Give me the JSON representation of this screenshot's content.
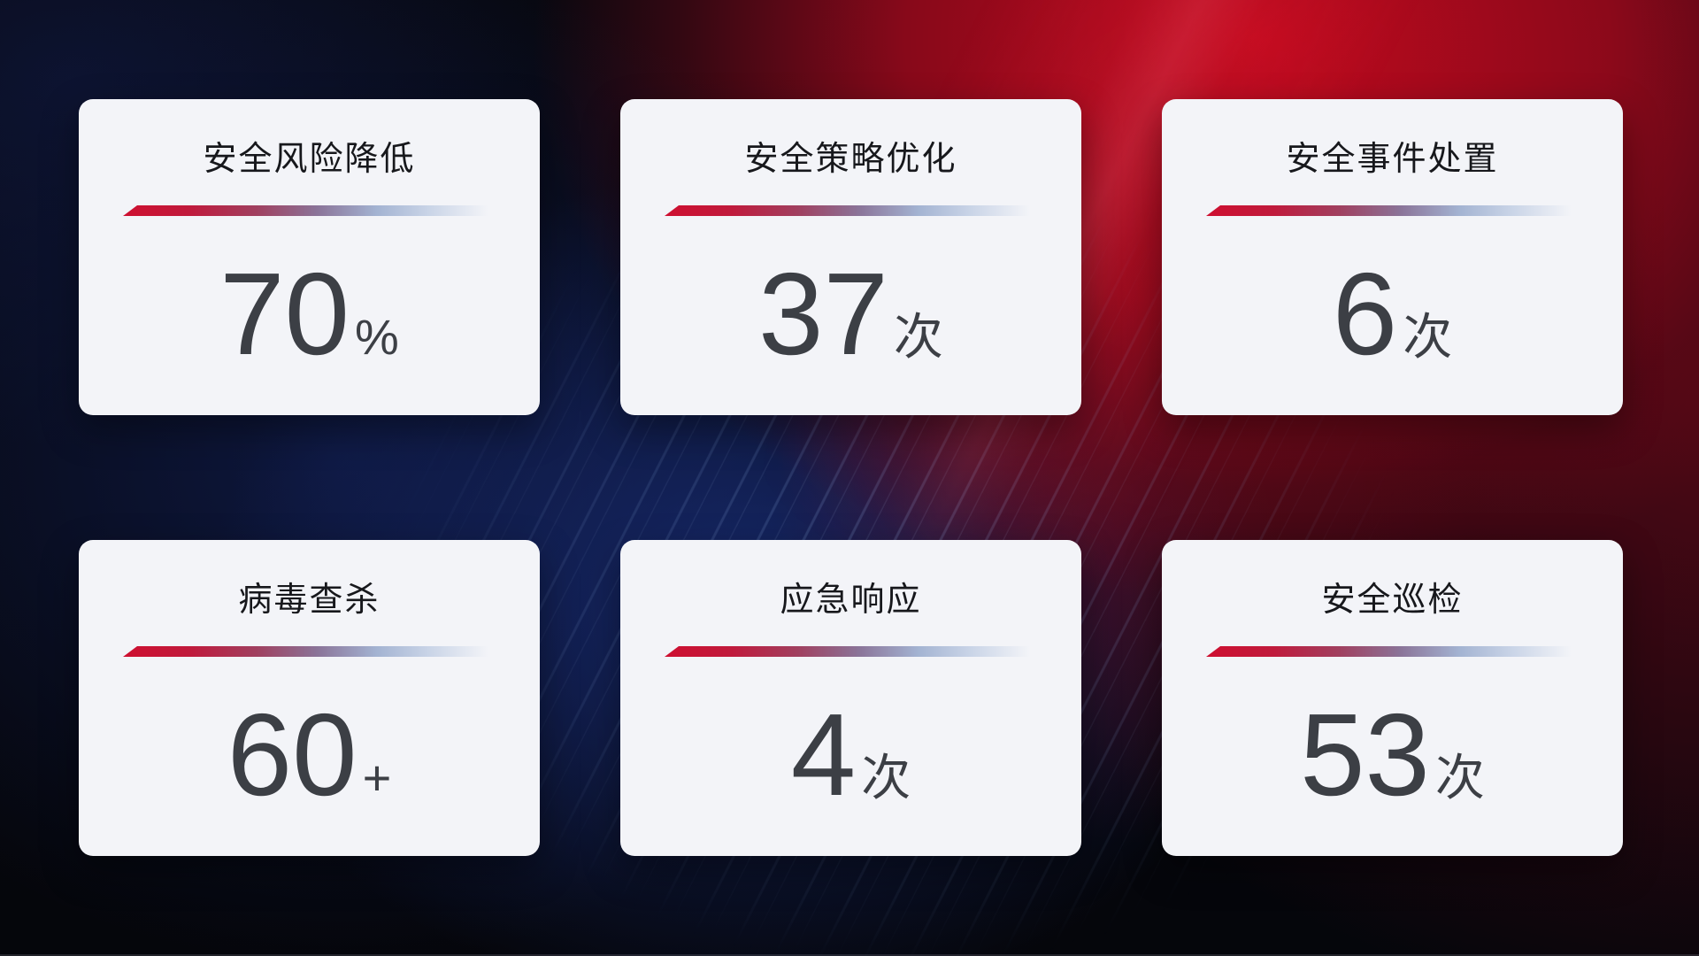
{
  "cards": [
    {
      "title": "安全风险降低",
      "value": "70",
      "unit": "%"
    },
    {
      "title": "安全策略优化",
      "value": "37",
      "unit": "次"
    },
    {
      "title": "安全事件处置",
      "value": "6",
      "unit": "次"
    },
    {
      "title": "病毒查杀",
      "value": "60",
      "unit": "+"
    },
    {
      "title": "应急响应",
      "value": "4",
      "unit": "次"
    },
    {
      "title": "安全巡检",
      "value": "53",
      "unit": "次"
    }
  ],
  "colors": {
    "card_background": "#f3f4f8",
    "title_text": "#17181c",
    "value_text": "#3c3f45",
    "divider_red": "#ce0f30",
    "divider_blue": "#c9d4e7",
    "background_red": "#a50d20",
    "background_navy": "#101a46"
  }
}
